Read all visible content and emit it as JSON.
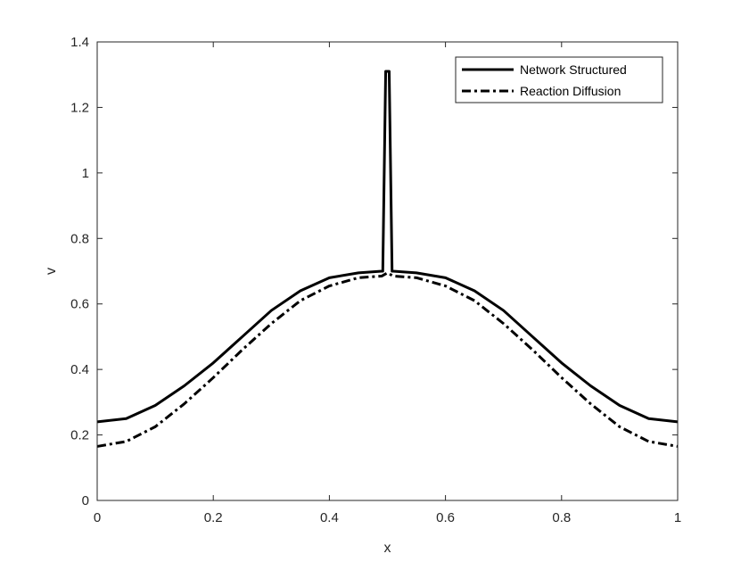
{
  "chart_data": {
    "type": "line",
    "title": "",
    "xlabel": "x",
    "ylabel": "v",
    "xlim": [
      0,
      1
    ],
    "ylim": [
      0,
      1.4
    ],
    "grid": false,
    "legend_position": "top-right",
    "x_ticks": [
      0,
      0.2,
      0.4,
      0.6,
      0.8,
      1
    ],
    "x_tick_labels": [
      "0",
      "0.2",
      "0.4",
      "0.6",
      "0.8",
      "1"
    ],
    "y_ticks": [
      0,
      0.2,
      0.4,
      0.6,
      0.8,
      1,
      1.2,
      1.4
    ],
    "y_tick_labels": [
      "0",
      "0.2",
      "0.4",
      "0.6",
      "0.8",
      "1",
      "1.2",
      "1.4"
    ],
    "series": [
      {
        "name": "Network Structured",
        "style": "solid",
        "color": "#000000",
        "x": [
          0,
          0.05,
          0.1,
          0.15,
          0.2,
          0.25,
          0.3,
          0.35,
          0.4,
          0.45,
          0.49,
          0.492,
          0.497,
          0.5,
          0.503,
          0.508,
          0.51,
          0.55,
          0.6,
          0.65,
          0.7,
          0.75,
          0.8,
          0.85,
          0.9,
          0.95,
          1
        ],
        "y": [
          0.24,
          0.25,
          0.29,
          0.35,
          0.42,
          0.5,
          0.58,
          0.64,
          0.68,
          0.695,
          0.7,
          0.7,
          1.31,
          1.31,
          1.31,
          0.7,
          0.7,
          0.695,
          0.68,
          0.64,
          0.58,
          0.5,
          0.42,
          0.35,
          0.29,
          0.25,
          0.24
        ]
      },
      {
        "name": "Reaction Diffusion",
        "style": "dashdot",
        "color": "#000000",
        "x": [
          0,
          0.05,
          0.1,
          0.15,
          0.2,
          0.25,
          0.3,
          0.35,
          0.4,
          0.45,
          0.49,
          0.5,
          0.51,
          0.55,
          0.6,
          0.65,
          0.7,
          0.75,
          0.8,
          0.85,
          0.9,
          0.95,
          1
        ],
        "y": [
          0.165,
          0.18,
          0.225,
          0.295,
          0.375,
          0.46,
          0.54,
          0.61,
          0.655,
          0.68,
          0.685,
          0.695,
          0.685,
          0.68,
          0.655,
          0.61,
          0.54,
          0.46,
          0.375,
          0.295,
          0.225,
          0.18,
          0.165
        ]
      }
    ]
  }
}
